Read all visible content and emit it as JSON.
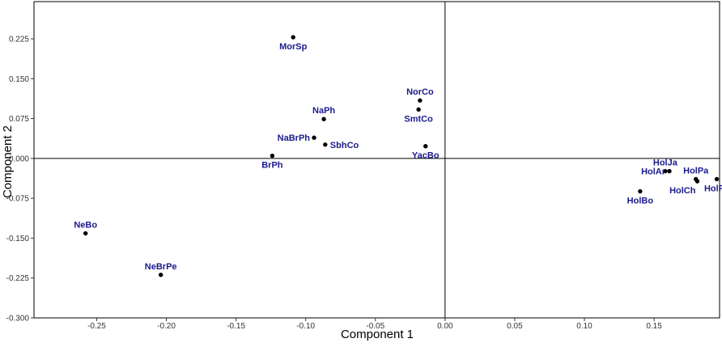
{
  "chart_data": {
    "type": "scatter",
    "xlabel": "Component 1",
    "ylabel": "Component 2",
    "xlim": [
      -0.295,
      0.197
    ],
    "ylim": [
      -0.3,
      0.295
    ],
    "x_ticks": [
      -0.25,
      -0.2,
      -0.15,
      -0.1,
      -0.05,
      0.0,
      0.05,
      0.1,
      0.15
    ],
    "x_tick_labels": [
      "-0.25",
      "-0.20",
      "-0.15",
      "-0.10",
      "-0.05",
      "0.00",
      "0.05",
      "0.10",
      "0.15"
    ],
    "y_ticks": [
      0.225,
      0.15,
      0.075,
      0.0,
      -0.075,
      -0.15,
      -0.225,
      -0.3
    ],
    "y_tick_labels": [
      "0.225",
      "0.150",
      "0.075",
      "0.000",
      "-0.075",
      "-0.150",
      "-0.225",
      "-0.300"
    ],
    "reference_lines": {
      "x": 0,
      "y": 0
    },
    "grid": false,
    "point_color": "#000000",
    "label_color": "#1a1a8c",
    "points": [
      {
        "label": "MorSp",
        "x": -0.109,
        "y": 0.228,
        "label_pos": "below"
      },
      {
        "label": "NaPh",
        "x": -0.087,
        "y": 0.074,
        "label_pos": "above"
      },
      {
        "label": "NaBrPh",
        "x": -0.094,
        "y": 0.039,
        "label_pos": "left"
      },
      {
        "label": "SbhCo",
        "x": -0.086,
        "y": 0.026,
        "label_pos": "right"
      },
      {
        "label": "BrPh",
        "x": -0.124,
        "y": 0.005,
        "label_pos": "below"
      },
      {
        "label": "NorCo",
        "x": -0.018,
        "y": 0.109,
        "label_pos": "above"
      },
      {
        "label": "SmtCo",
        "x": -0.019,
        "y": 0.092,
        "label_pos": "below"
      },
      {
        "label": "YacBo",
        "x": -0.014,
        "y": 0.023,
        "label_pos": "below"
      },
      {
        "label": "HolJa",
        "x": 0.158,
        "y": -0.024,
        "label_pos": "above"
      },
      {
        "label": "HolAr",
        "x": 0.161,
        "y": -0.024,
        "label_pos": "left"
      },
      {
        "label": "HolPa",
        "x": 0.18,
        "y": -0.039,
        "label_pos": "above"
      },
      {
        "label": "HolCh",
        "x": 0.181,
        "y": -0.043,
        "label_pos": "below-left"
      },
      {
        "label": "HolPe",
        "x": 0.195,
        "y": -0.039,
        "label_pos": "below"
      },
      {
        "label": "HolBo",
        "x": 0.14,
        "y": -0.062,
        "label_pos": "below"
      },
      {
        "label": "NeBo",
        "x": -0.258,
        "y": -0.141,
        "label_pos": "above"
      },
      {
        "label": "NeBrPe",
        "x": -0.204,
        "y": -0.219,
        "label_pos": "above"
      }
    ]
  }
}
